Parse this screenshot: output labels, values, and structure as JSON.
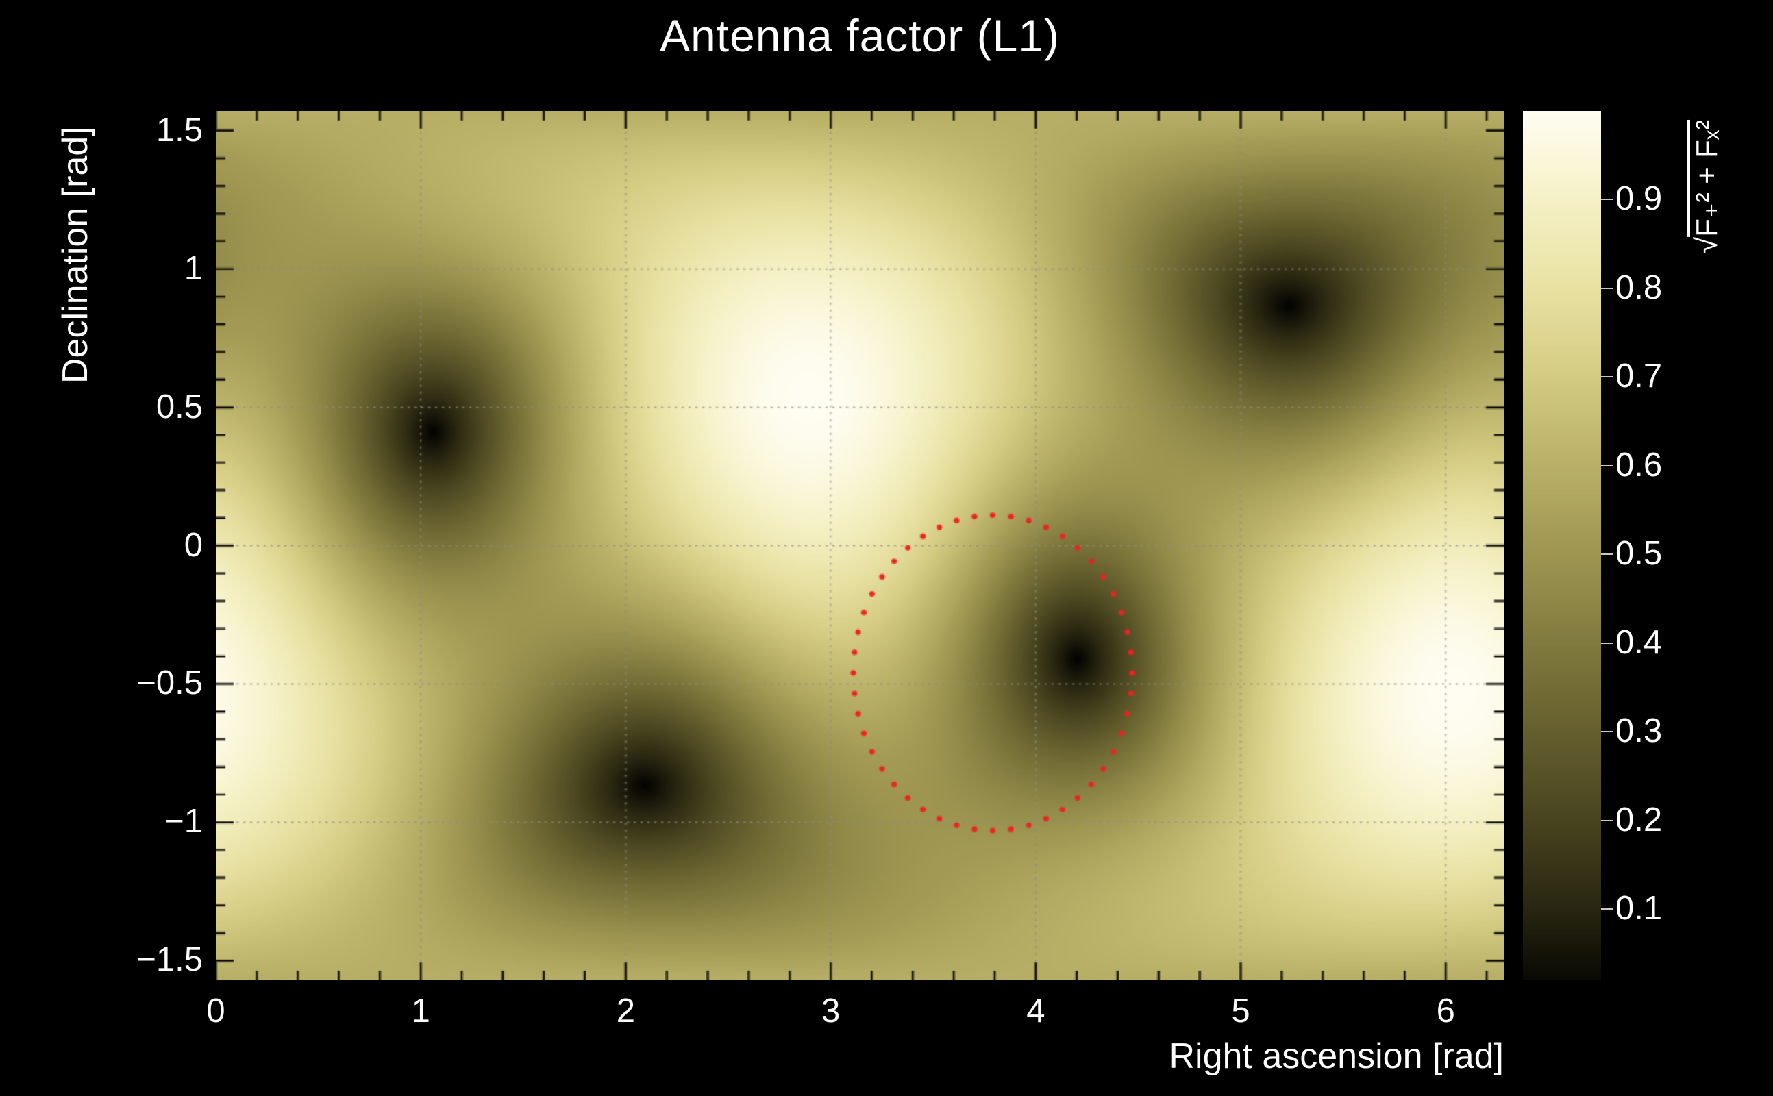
{
  "page": {
    "background": "#000000",
    "text_color": "#ffffff"
  },
  "chart_data": {
    "type": "heatmap",
    "title": "Antenna factor (L1)",
    "xlabel": "Right ascension [rad]",
    "ylabel": "Declination [rad]",
    "zlabel": {
      "radical": "√",
      "expr": "F₊² + Fₓ²"
    },
    "xlim": [
      0,
      6.2832
    ],
    "ylim": [
      -1.5708,
      1.5708
    ],
    "zlim": [
      0.02,
      1.0
    ],
    "x_ticks": {
      "values": [
        0,
        1,
        2,
        3,
        4,
        5,
        6
      ],
      "labels": [
        "0",
        "1",
        "2",
        "3",
        "4",
        "5",
        "6"
      ],
      "minor_step": 0.2
    },
    "y_ticks": {
      "values": [
        1.5,
        1,
        0.5,
        0,
        -0.5,
        -1,
        -1.5
      ],
      "labels": [
        "1.5",
        "1",
        "0.5",
        "0",
        "−0.5",
        "−1",
        "−1.5"
      ],
      "minor_step": 0.1
    },
    "grid": {
      "x": [
        1,
        2,
        3,
        4,
        5,
        6
      ],
      "y": [
        -1,
        -0.5,
        0,
        0.5,
        1
      ],
      "style": "dotted",
      "color": "#8c8c8c"
    },
    "colorbar": {
      "ticks": [
        0.1,
        0.2,
        0.3,
        0.4,
        0.5,
        0.6,
        0.7,
        0.8,
        0.9
      ],
      "labels": [
        "0.1",
        "0.2",
        "0.3",
        "0.4",
        "0.5",
        "0.6",
        "0.7",
        "0.8",
        "0.9"
      ]
    },
    "surface": {
      "function": "sqrt(Fplus^2 + Fcross^2) antenna response over the sky",
      "zenith": {
        "ra": 2.891,
        "dec": 0.534
      },
      "nulls": [
        {
          "ra": 1.06,
          "dec": 0.41
        },
        {
          "ra": 2.1,
          "dec": -0.87
        },
        {
          "ra": 4.21,
          "dec": -0.4
        },
        {
          "ra": 5.25,
          "dec": 0.88
        }
      ],
      "maxima": [
        {
          "ra": 2.89,
          "dec": 0.53,
          "value": 1.0
        },
        {
          "ra": 6.03,
          "dec": -0.53,
          "value": 1.0
        }
      ]
    },
    "colormap": [
      [
        0.0,
        "#020201"
      ],
      [
        0.1,
        "#282610"
      ],
      [
        0.2,
        "#48441f"
      ],
      [
        0.3,
        "#655f2e"
      ],
      [
        0.4,
        "#817a3e"
      ],
      [
        0.5,
        "#9d9550"
      ],
      [
        0.6,
        "#b9b068"
      ],
      [
        0.7,
        "#d4cb82"
      ],
      [
        0.8,
        "#e8e1a2"
      ],
      [
        0.9,
        "#f5f1c6"
      ],
      [
        1.0,
        "#fffdf2"
      ]
    ],
    "contour": {
      "shape": "dotted-ellipse",
      "color": "#ee2222",
      "center": {
        "ra": 3.79,
        "dec": -0.46
      },
      "rx": 0.68,
      "ry": 0.57,
      "n_dots": 48
    }
  }
}
